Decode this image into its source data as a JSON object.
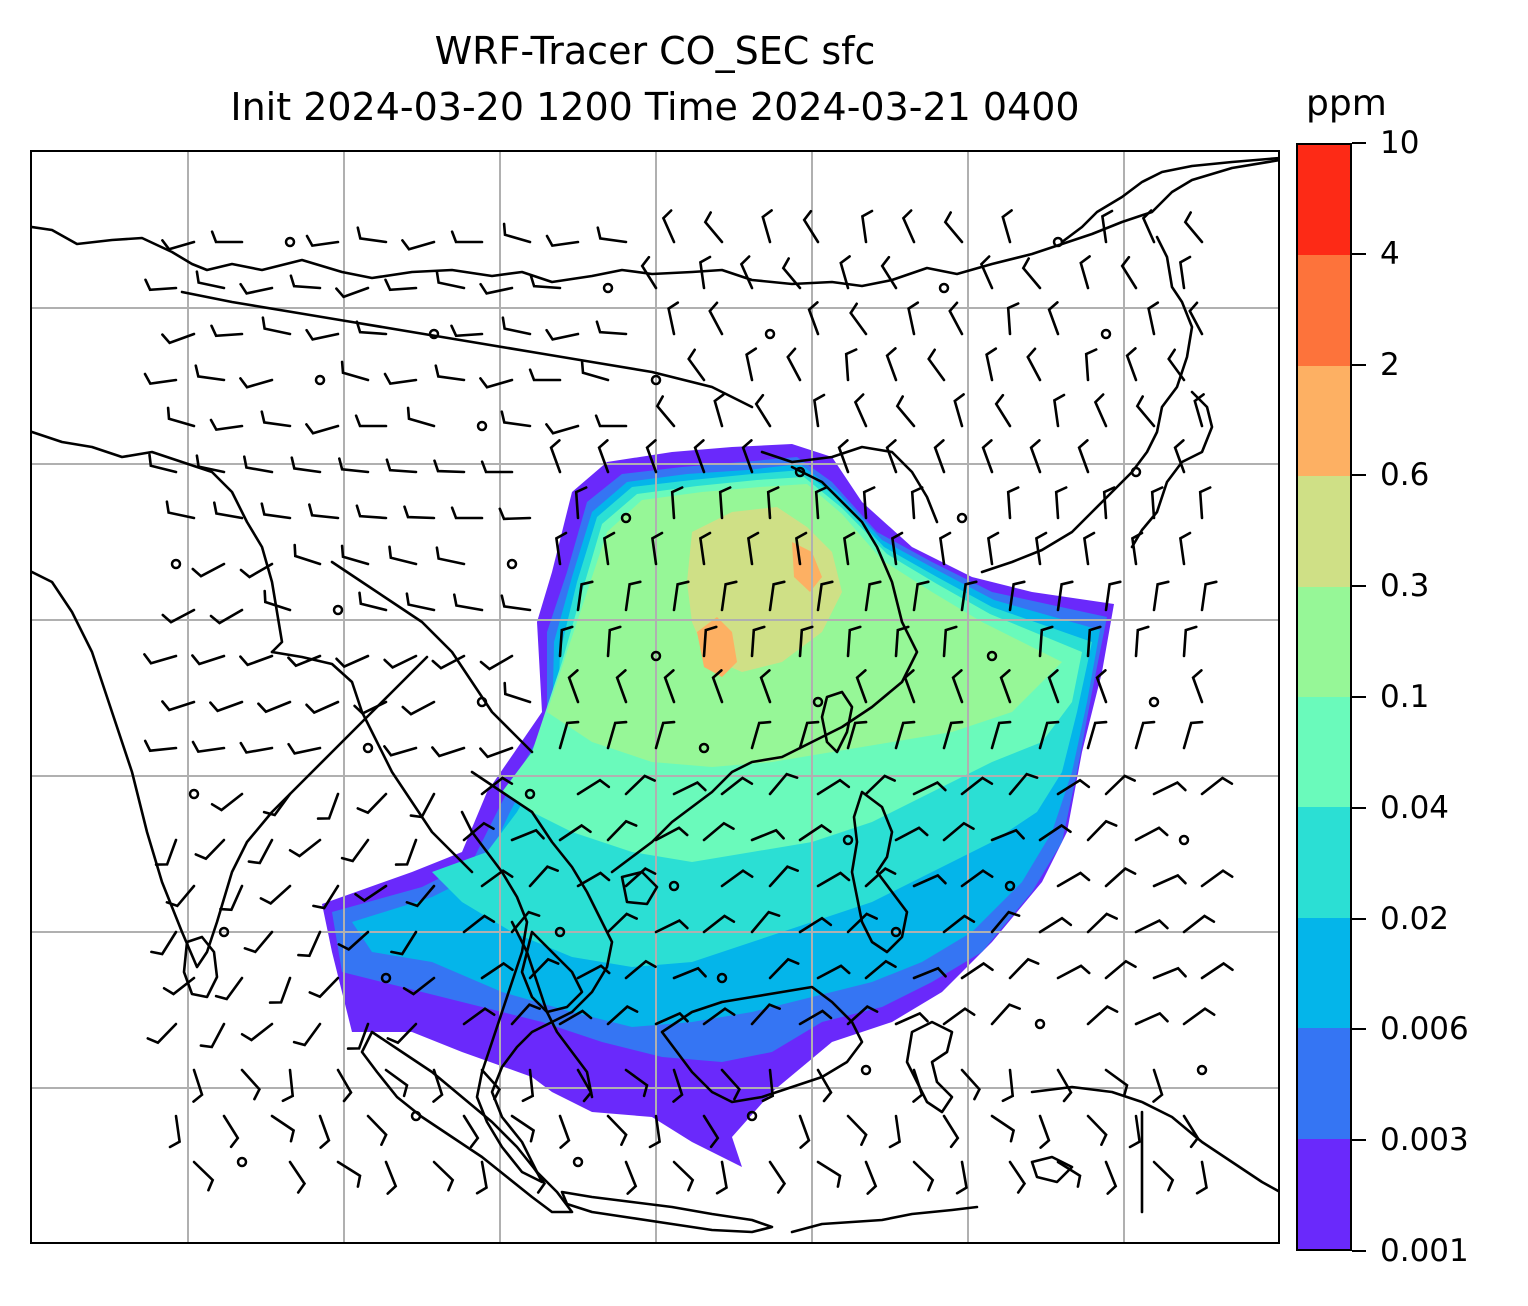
{
  "title": {
    "line1": "WRF-Tracer CO_SEC sfc",
    "line2": "Init 2024-03-20 1200 Time 2024-03-21 0400"
  },
  "colorbar": {
    "label": "ppm",
    "levels": [
      "0.001",
      "0.003",
      "0.006",
      "0.02",
      "0.04",
      "0.1",
      "0.3",
      "0.6",
      "2",
      "4",
      "10"
    ],
    "colors": [
      "#6a29fb",
      "#3575f3",
      "#04b5ea",
      "#2bdfd4",
      "#6afabb",
      "#96f797",
      "#cfe086",
      "#fdb063",
      "#fd733b",
      "#fd2a16"
    ]
  },
  "colors": {
    "coastline": "#000000",
    "gridline": "#b0b0b0",
    "barb": "#000000"
  },
  "chart_data": {
    "type": "heatmap",
    "variable": "CO_SEC surface tracer concentration with wind barbs",
    "units": "ppm",
    "color_levels": [
      0.001,
      0.003,
      0.006,
      0.02,
      0.04,
      0.1,
      0.3,
      0.6,
      2,
      4,
      10
    ],
    "gridlines": true,
    "legend": "colorbar right"
  }
}
